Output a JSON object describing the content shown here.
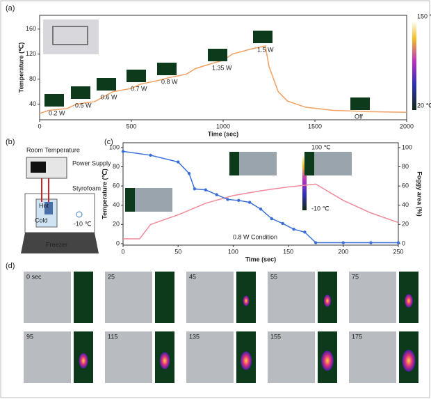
{
  "panels": {
    "a": "(a)",
    "b": "(b)",
    "c": "(c)",
    "d": "(d)"
  },
  "chart_data": [
    {
      "type": "line",
      "xlabel": "Time (sec)",
      "ylabel": "Temperature (℃)",
      "xlim": [
        0,
        2000
      ],
      "ylim": [
        15,
        182
      ],
      "xticks": [
        0,
        500,
        1000,
        1500,
        2000
      ],
      "yticks": [
        40,
        80,
        120,
        160
      ],
      "series": [
        {
          "color": "#f0a060",
          "x": [
            0,
            50,
            150,
            200,
            300,
            350,
            400,
            500,
            550,
            650,
            700,
            800,
            850,
            950,
            1000,
            1050,
            1150,
            1230,
            1250,
            1300,
            1350,
            1450,
            1600,
            1800,
            2000
          ],
          "values": [
            25,
            30,
            33,
            40,
            44,
            52,
            60,
            65,
            72,
            78,
            82,
            88,
            97,
            106,
            110,
            120,
            128,
            133,
            100,
            60,
            45,
            35,
            30,
            28,
            27
          ]
        }
      ],
      "annotations": [
        "0.2 W",
        "0.5 W",
        "0.6 W",
        "0.7 W",
        "0.8 W",
        "1.35 W",
        "1.5 W",
        "Off"
      ],
      "colorbar": [
        "150 ℃",
        "20 ℃"
      ]
    },
    {
      "type": "line",
      "xlabel": "Time (sec)",
      "ylabel": "Temperature (℃)",
      "y2label": "Foggy area (%)",
      "xlim": [
        0,
        250
      ],
      "ylim": [
        -1.5,
        105
      ],
      "y2lim": [
        -1.5,
        105
      ],
      "xticks": [
        0,
        50,
        100,
        150,
        200,
        250
      ],
      "yticks": [
        0,
        20,
        40,
        60,
        80,
        100
      ],
      "y2ticks": [
        0,
        20,
        40,
        60,
        80,
        100
      ],
      "series": [
        {
          "color": "#f08a9a",
          "x": [
            0,
            15,
            25,
            50,
            75,
            100,
            125,
            150,
            175,
            200,
            225,
            250
          ],
          "values": [
            5,
            5,
            20,
            30,
            42,
            50,
            55,
            59,
            62,
            45,
            32,
            22
          ]
        },
        {
          "color": "#3a6fd8",
          "axis": "y2",
          "markers": true,
          "x": [
            0,
            25,
            50,
            60,
            65,
            75,
            85,
            95,
            105,
            115,
            125,
            135,
            145,
            155,
            165,
            175,
            200,
            225,
            250
          ],
          "values": [
            96,
            92,
            85,
            73,
            57,
            56,
            51,
            46,
            45,
            43,
            36,
            26,
            21,
            15,
            12,
            1,
            1,
            1,
            1
          ]
        }
      ],
      "annotations": [
        "0.8 W Condition"
      ],
      "colorbar": [
        "100 ℃",
        "-10 ℃"
      ]
    }
  ],
  "diagram": {
    "labels": [
      "Room Temperature",
      "Power Supply",
      "Styrofoam",
      "Hot",
      "Cold",
      "-10 ℃",
      "Freezer"
    ]
  },
  "frames": [
    "0 sec",
    "25",
    "45",
    "55",
    "75",
    "95",
    "115",
    "135",
    "155",
    "175"
  ]
}
